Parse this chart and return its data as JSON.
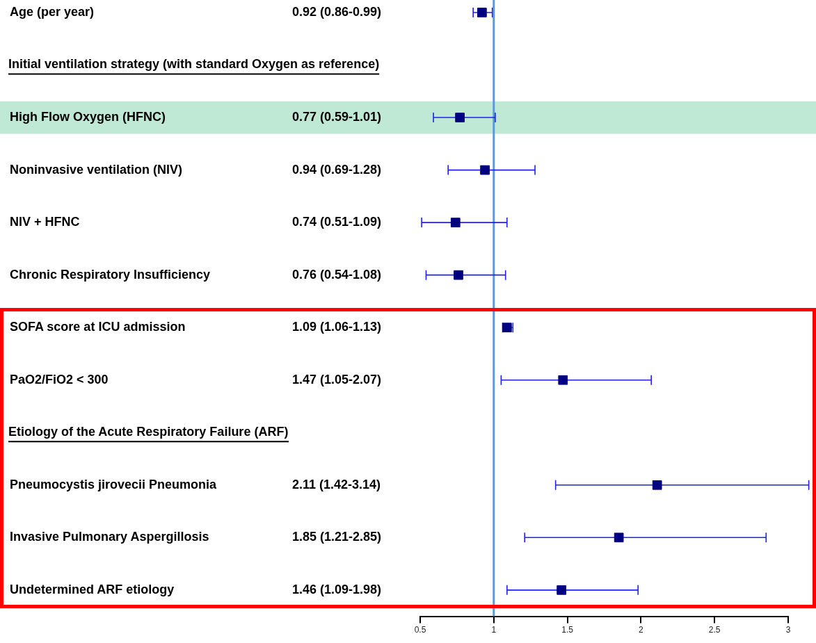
{
  "chart_data": {
    "type": "scatter",
    "orientation": "horizontal",
    "categories": [
      "Age (per year)",
      "Initial ventilation strategy (with standard Oxygen as reference)",
      "High Flow Oxygen (HFNC)",
      "Noninvasive ventilation (NIV)",
      "NIV + HFNC",
      "Chronic Respiratory Insufficiency",
      "SOFA score at ICU admission",
      "PaO2/FiO2 < 300",
      "Etiology of the Acute Respiratory Failure (ARF)",
      "Pneumocystis jirovecii Pneumonia",
      "Invasive Pulmonary Aspergillosis",
      "Undetermined ARF etiology"
    ],
    "series": [
      {
        "color": "#000080",
        "values": [
          0.92,
          null,
          0.77,
          0.94,
          0.74,
          0.76,
          1.09,
          1.47,
          null,
          2.11,
          1.85,
          1.46
        ],
        "errors": [
          [
            0.86,
            0.99
          ],
          null,
          [
            0.59,
            1.01
          ],
          [
            0.69,
            1.28
          ],
          [
            0.51,
            1.09
          ],
          [
            0.54,
            1.08
          ],
          [
            1.06,
            1.13
          ],
          [
            1.05,
            2.07
          ],
          null,
          [
            1.42,
            3.14
          ],
          [
            1.21,
            2.85
          ],
          [
            1.09,
            1.98
          ]
        ],
        "value_labels": [
          "0.92 (0.86-0.99)",
          null,
          "0.77 (0.59-1.01)",
          "0.94 (0.69-1.28)",
          "0.74 (0.51-1.09)",
          "0.76 (0.54-1.08)",
          "1.09 (1.06-1.13)",
          "1.47 (1.05-2.07)",
          null,
          "2.11 (1.42-3.14)",
          "1.85 (1.21-2.85)",
          "1.46 (1.09-1.98)"
        ]
      }
    ],
    "xlim": [
      0.5,
      3
    ],
    "xticks": [
      0.5,
      1,
      1.5,
      2,
      2.5,
      3
    ],
    "ref_lines": [
      {
        "axis": "x",
        "value": 1,
        "color": "#5b9bd5"
      }
    ],
    "bands": [
      {
        "axis": "y",
        "from": "High Flow Oxygen (HFNC)",
        "to": "High Flow Oxygen (HFNC)",
        "color": "#bfe9d4"
      }
    ],
    "grid": false,
    "legend": false,
    "marker": "square"
  }
}
